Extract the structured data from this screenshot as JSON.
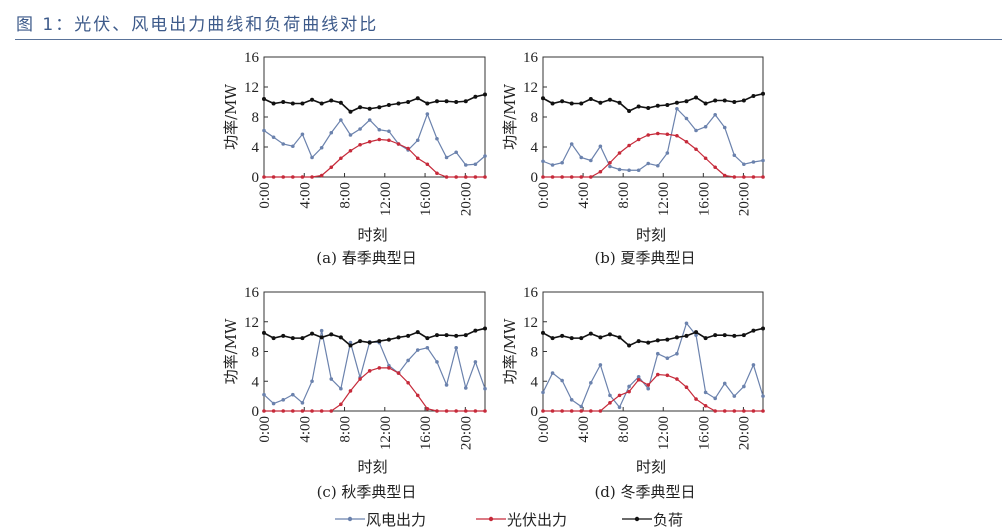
{
  "title": "图 1：光伏、风电出力曲线和负荷曲线对比",
  "legend": [
    {
      "name": "风电出力",
      "color": "#6b82ad"
    },
    {
      "name": "光伏出力",
      "color": "#c62a3a"
    },
    {
      "name": "负荷",
      "color": "#111111"
    }
  ],
  "chart_data": [
    {
      "type": "line",
      "caption": "(a) 春季典型日",
      "xlabel": "时刻",
      "ylabel": "功率/MW",
      "x_range_hours": [
        0,
        21
      ],
      "xticks": [
        "0:00",
        "4:00",
        "8:00",
        "12:00",
        "16:00",
        "20:00"
      ],
      "ylim": [
        0,
        16
      ],
      "yticks": [
        0,
        4,
        8,
        12,
        16
      ],
      "grid": false,
      "series": [
        {
          "name": "风电出力",
          "values": [
            6.2,
            5.3,
            4.4,
            4.1,
            5.7,
            2.6,
            3.9,
            5.9,
            7.6,
            5.6,
            6.4,
            7.6,
            6.3,
            6.1,
            4.4,
            3.6,
            4.9,
            8.4,
            5.1,
            2.6,
            3.3,
            1.6,
            1.7,
            2.8
          ]
        },
        {
          "name": "光伏出力",
          "values": [
            0,
            0,
            0,
            0,
            0,
            0,
            0.2,
            1.3,
            2.5,
            3.5,
            4.3,
            4.7,
            5.0,
            4.9,
            4.4,
            3.8,
            2.5,
            1.7,
            0.5,
            0,
            0,
            0,
            0,
            0
          ]
        },
        {
          "name": "负荷",
          "values": [
            10.4,
            9.8,
            10.0,
            9.8,
            9.8,
            10.3,
            9.8,
            10.2,
            9.9,
            8.7,
            9.3,
            9.1,
            9.3,
            9.6,
            9.8,
            10.0,
            10.5,
            9.8,
            10.1,
            10.1,
            10.0,
            10.1,
            10.7,
            11.0
          ]
        }
      ]
    },
    {
      "type": "line",
      "caption": "(b) 夏季典型日",
      "xlabel": "时刻",
      "ylabel": "功率/MW",
      "x_range_hours": [
        0,
        21
      ],
      "xticks": [
        "0:00",
        "4:00",
        "8:00",
        "12:00",
        "16:00",
        "20:00"
      ],
      "ylim": [
        0,
        16
      ],
      "yticks": [
        0,
        4,
        8,
        12,
        16
      ],
      "grid": false,
      "series": [
        {
          "name": "风电出力",
          "values": [
            2.1,
            1.6,
            1.9,
            4.4,
            2.6,
            2.2,
            4.1,
            1.4,
            1.0,
            0.9,
            0.9,
            1.8,
            1.5,
            3.2,
            9.1,
            7.8,
            6.2,
            6.7,
            8.3,
            6.6,
            2.9,
            1.7,
            2.0,
            2.2
          ]
        },
        {
          "name": "光伏出力",
          "values": [
            0,
            0,
            0,
            0,
            0,
            0,
            0.7,
            1.9,
            3.2,
            4.2,
            5.0,
            5.6,
            5.8,
            5.7,
            5.5,
            4.7,
            3.7,
            2.5,
            1.3,
            0.2,
            0,
            0,
            0,
            0
          ]
        },
        {
          "name": "负荷",
          "values": [
            10.5,
            9.8,
            10.1,
            9.8,
            9.8,
            10.4,
            9.9,
            10.3,
            9.9,
            8.8,
            9.4,
            9.2,
            9.5,
            9.6,
            9.9,
            10.1,
            10.6,
            9.8,
            10.2,
            10.2,
            10.0,
            10.2,
            10.8,
            11.1
          ]
        }
      ]
    },
    {
      "type": "line",
      "caption": "(c) 秋季典型日",
      "xlabel": "时刻",
      "ylabel": "功率/MW",
      "x_range_hours": [
        0,
        21
      ],
      "xticks": [
        "0:00",
        "4:00",
        "8:00",
        "12:00",
        "16:00",
        "20:00"
      ],
      "ylim": [
        0,
        16
      ],
      "yticks": [
        0,
        4,
        8,
        12,
        16
      ],
      "grid": false,
      "series": [
        {
          "name": "风电出力",
          "values": [
            2.2,
            1.0,
            1.5,
            2.2,
            1.1,
            4.0,
            10.8,
            4.3,
            3.0,
            9.2,
            4.5,
            9.3,
            9.2,
            6.1,
            5.1,
            6.8,
            8.2,
            8.5,
            6.6,
            3.5,
            8.5,
            3.1,
            6.6,
            3.0
          ]
        },
        {
          "name": "光伏出力",
          "values": [
            0,
            0,
            0,
            0,
            0,
            0,
            0,
            0,
            0.9,
            2.7,
            4.3,
            5.4,
            5.8,
            5.8,
            5.1,
            3.8,
            2.1,
            0.3,
            0,
            0,
            0,
            0,
            0,
            0
          ]
        },
        {
          "name": "负荷",
          "values": [
            10.5,
            9.8,
            10.1,
            9.8,
            9.8,
            10.4,
            9.9,
            10.3,
            9.9,
            8.8,
            9.4,
            9.2,
            9.4,
            9.6,
            9.9,
            10.1,
            10.6,
            9.8,
            10.2,
            10.2,
            10.1,
            10.2,
            10.8,
            11.1
          ]
        }
      ]
    },
    {
      "type": "line",
      "caption": "(d) 冬季典型日",
      "xlabel": "时刻",
      "ylabel": "功率/MW",
      "x_range_hours": [
        0,
        21
      ],
      "xticks": [
        "0:00",
        "4:00",
        "8:00",
        "12:00",
        "16:00",
        "20:00"
      ],
      "ylim": [
        0,
        16
      ],
      "yticks": [
        0,
        4,
        8,
        12,
        16
      ],
      "grid": false,
      "series": [
        {
          "name": "风电出力",
          "values": [
            2.5,
            5.1,
            4.1,
            1.5,
            0.6,
            3.8,
            6.2,
            2.1,
            0.5,
            3.3,
            4.6,
            3.0,
            7.7,
            7.1,
            7.7,
            11.8,
            10.2,
            2.5,
            1.7,
            3.7,
            2.0,
            3.3,
            6.2,
            2.0
          ]
        },
        {
          "name": "光伏出力",
          "values": [
            0,
            0,
            0,
            0,
            0,
            0,
            0,
            1.1,
            2.1,
            2.6,
            4.2,
            3.5,
            4.9,
            4.8,
            4.3,
            3.2,
            1.6,
            0.7,
            0,
            0,
            0,
            0,
            0,
            0
          ]
        },
        {
          "name": "负荷",
          "values": [
            10.5,
            9.8,
            10.1,
            9.8,
            9.8,
            10.4,
            9.9,
            10.3,
            9.9,
            8.8,
            9.4,
            9.2,
            9.5,
            9.6,
            9.9,
            10.1,
            10.6,
            9.8,
            10.2,
            10.2,
            10.1,
            10.2,
            10.8,
            11.1
          ]
        }
      ]
    }
  ]
}
